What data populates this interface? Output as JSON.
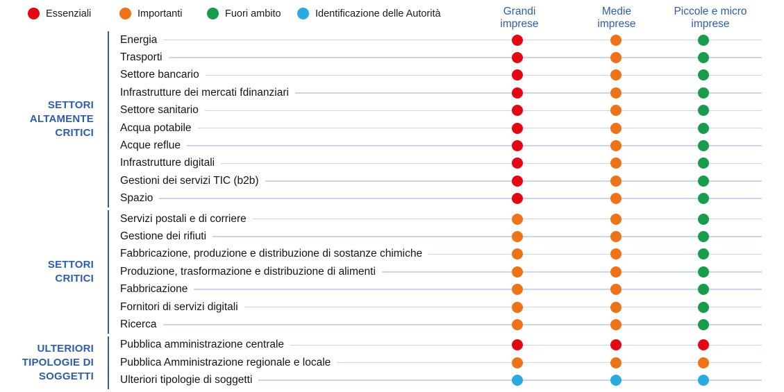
{
  "colors": {
    "accent_blue": "#2D5DA9",
    "leader_line": "#CBD5EA",
    "row_text": "#141414",
    "essenziali_red": "#E30613",
    "importanti_orange": "#ED7218",
    "fuori_ambito_green": "#189B4A",
    "identificazione_blue": "#29ABE2"
  },
  "chart_data": {
    "type": "table",
    "title": "",
    "legend_position": "top",
    "legend": [
      {
        "label": "Essenziali",
        "color": "#E30613"
      },
      {
        "label": "Importanti",
        "color": "#ED7218"
      },
      {
        "label": "Fuori ambito",
        "color": "#189B4A"
      },
      {
        "label": "Identificazione delle Autorità",
        "color": "#29ABE2"
      }
    ],
    "columns": [
      {
        "label": "Grandi imprese",
        "label_lines": [
          "Grandi",
          "imprese"
        ]
      },
      {
        "label": "Medie imprese",
        "label_lines": [
          "Medie",
          "imprese"
        ]
      },
      {
        "label": "Piccole e micro imprese",
        "label_lines": [
          "Piccole e micro",
          "imprese"
        ]
      }
    ],
    "groups": [
      {
        "label": "SETTORI ALTAMENTE CRITICI",
        "label_lines": [
          "SETTORI",
          "ALTAMENTE",
          "CRITICI"
        ],
        "rows": [
          {
            "label": "Energia",
            "values": [
              "Essenziali",
              "Importanti",
              "Fuori ambito"
            ]
          },
          {
            "label": "Trasporti",
            "values": [
              "Essenziali",
              "Importanti",
              "Fuori ambito"
            ]
          },
          {
            "label": "Settore bancario",
            "values": [
              "Essenziali",
              "Importanti",
              "Fuori ambito"
            ]
          },
          {
            "label": "Infrastrutture dei mercati fdinanziari",
            "values": [
              "Essenziali",
              "Importanti",
              "Fuori ambito"
            ]
          },
          {
            "label": "Settore sanitario",
            "values": [
              "Essenziali",
              "Importanti",
              "Fuori ambito"
            ]
          },
          {
            "label": "Acqua potabile",
            "values": [
              "Essenziali",
              "Importanti",
              "Fuori ambito"
            ]
          },
          {
            "label": "Acque reflue",
            "values": [
              "Essenziali",
              "Importanti",
              "Fuori ambito"
            ]
          },
          {
            "label": "Infrastrutture digitali",
            "values": [
              "Essenziali",
              "Importanti",
              "Fuori ambito"
            ]
          },
          {
            "label": "Gestioni dei servizi TIC (b2b)",
            "values": [
              "Essenziali",
              "Importanti",
              "Fuori ambito"
            ]
          },
          {
            "label": "Spazio",
            "values": [
              "Essenziali",
              "Importanti",
              "Fuori ambito"
            ]
          }
        ]
      },
      {
        "label": "SETTORI CRITICI",
        "label_lines": [
          "SETTORI",
          "CRITICI"
        ],
        "rows": [
          {
            "label": "Servizi postali e di corriere",
            "values": [
              "Importanti",
              "Importanti",
              "Fuori ambito"
            ]
          },
          {
            "label": "Gestione dei rifiuti",
            "values": [
              "Importanti",
              "Importanti",
              "Fuori ambito"
            ]
          },
          {
            "label": "Fabbricazione, produzione e distribuzione di sostanze chimiche",
            "values": [
              "Importanti",
              "Importanti",
              "Fuori ambito"
            ]
          },
          {
            "label": "Produzione, trasformazione e distribuzione di alimenti",
            "values": [
              "Importanti",
              "Importanti",
              "Fuori ambito"
            ]
          },
          {
            "label": "Fabbricazione",
            "values": [
              "Importanti",
              "Importanti",
              "Fuori ambito"
            ]
          },
          {
            "label": "Fornitori di servizi digitali",
            "values": [
              "Importanti",
              "Importanti",
              "Fuori ambito"
            ]
          },
          {
            "label": "Ricerca",
            "values": [
              "Importanti",
              "Importanti",
              "Fuori ambito"
            ]
          }
        ]
      },
      {
        "label": "ULTERIORI TIPOLOGIE DI SOGGETTI",
        "label_lines": [
          "ULTERIORI",
          "TIPOLOGIE DI",
          "SOGGETTI"
        ],
        "rows": [
          {
            "label": "Pubblica amministrazione centrale",
            "values": [
              "Essenziali",
              "Essenziali",
              "Essenziali"
            ]
          },
          {
            "label": "Pubblica Amministrazione regionale e locale",
            "values": [
              "Importanti",
              "Importanti",
              "Importanti"
            ]
          },
          {
            "label": "Ulteriori tipologie di soggetti",
            "values": [
              "Identificazione delle Autorità",
              "Identificazione delle Autorità",
              "Identificazione delle Autorità"
            ]
          }
        ]
      }
    ]
  }
}
